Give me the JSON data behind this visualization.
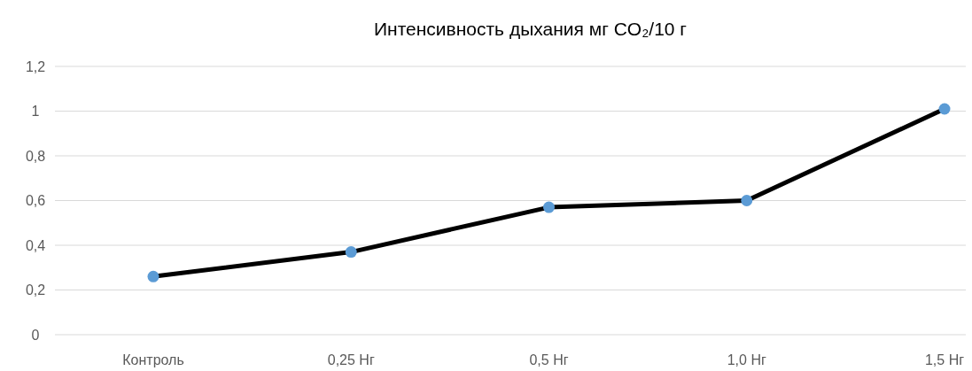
{
  "chart_data": {
    "type": "line",
    "title": "Интенсивность дыхания мг CO₂/10 г",
    "categories": [
      "Контроль",
      "0,25 Нг",
      "0,5 Нг",
      "1,0 Нг",
      "1,5 Нг"
    ],
    "series": [
      {
        "color": "#000000",
        "colors": [
          "#5b9bd5",
          "#5b9bd5",
          "#5b9bd5",
          "#5b9bd5",
          "#5b9bd5"
        ],
        "values": [
          0.26,
          0.37,
          0.57,
          0.6,
          1.01
        ]
      }
    ],
    "ylim": [
      0,
      1.2
    ],
    "yticks": [
      {
        "value": 0,
        "label": "0"
      },
      {
        "value": 0.2,
        "label": "0,2"
      },
      {
        "value": 0.4,
        "label": "0,4"
      },
      {
        "value": 0.6,
        "label": "0,6"
      },
      {
        "value": 0.8,
        "label": "0,8"
      },
      {
        "value": 1,
        "label": "1"
      },
      {
        "value": 1.2,
        "label": "1,2"
      }
    ],
    "grid": "y",
    "marker": "circle",
    "line_style": "solid"
  }
}
